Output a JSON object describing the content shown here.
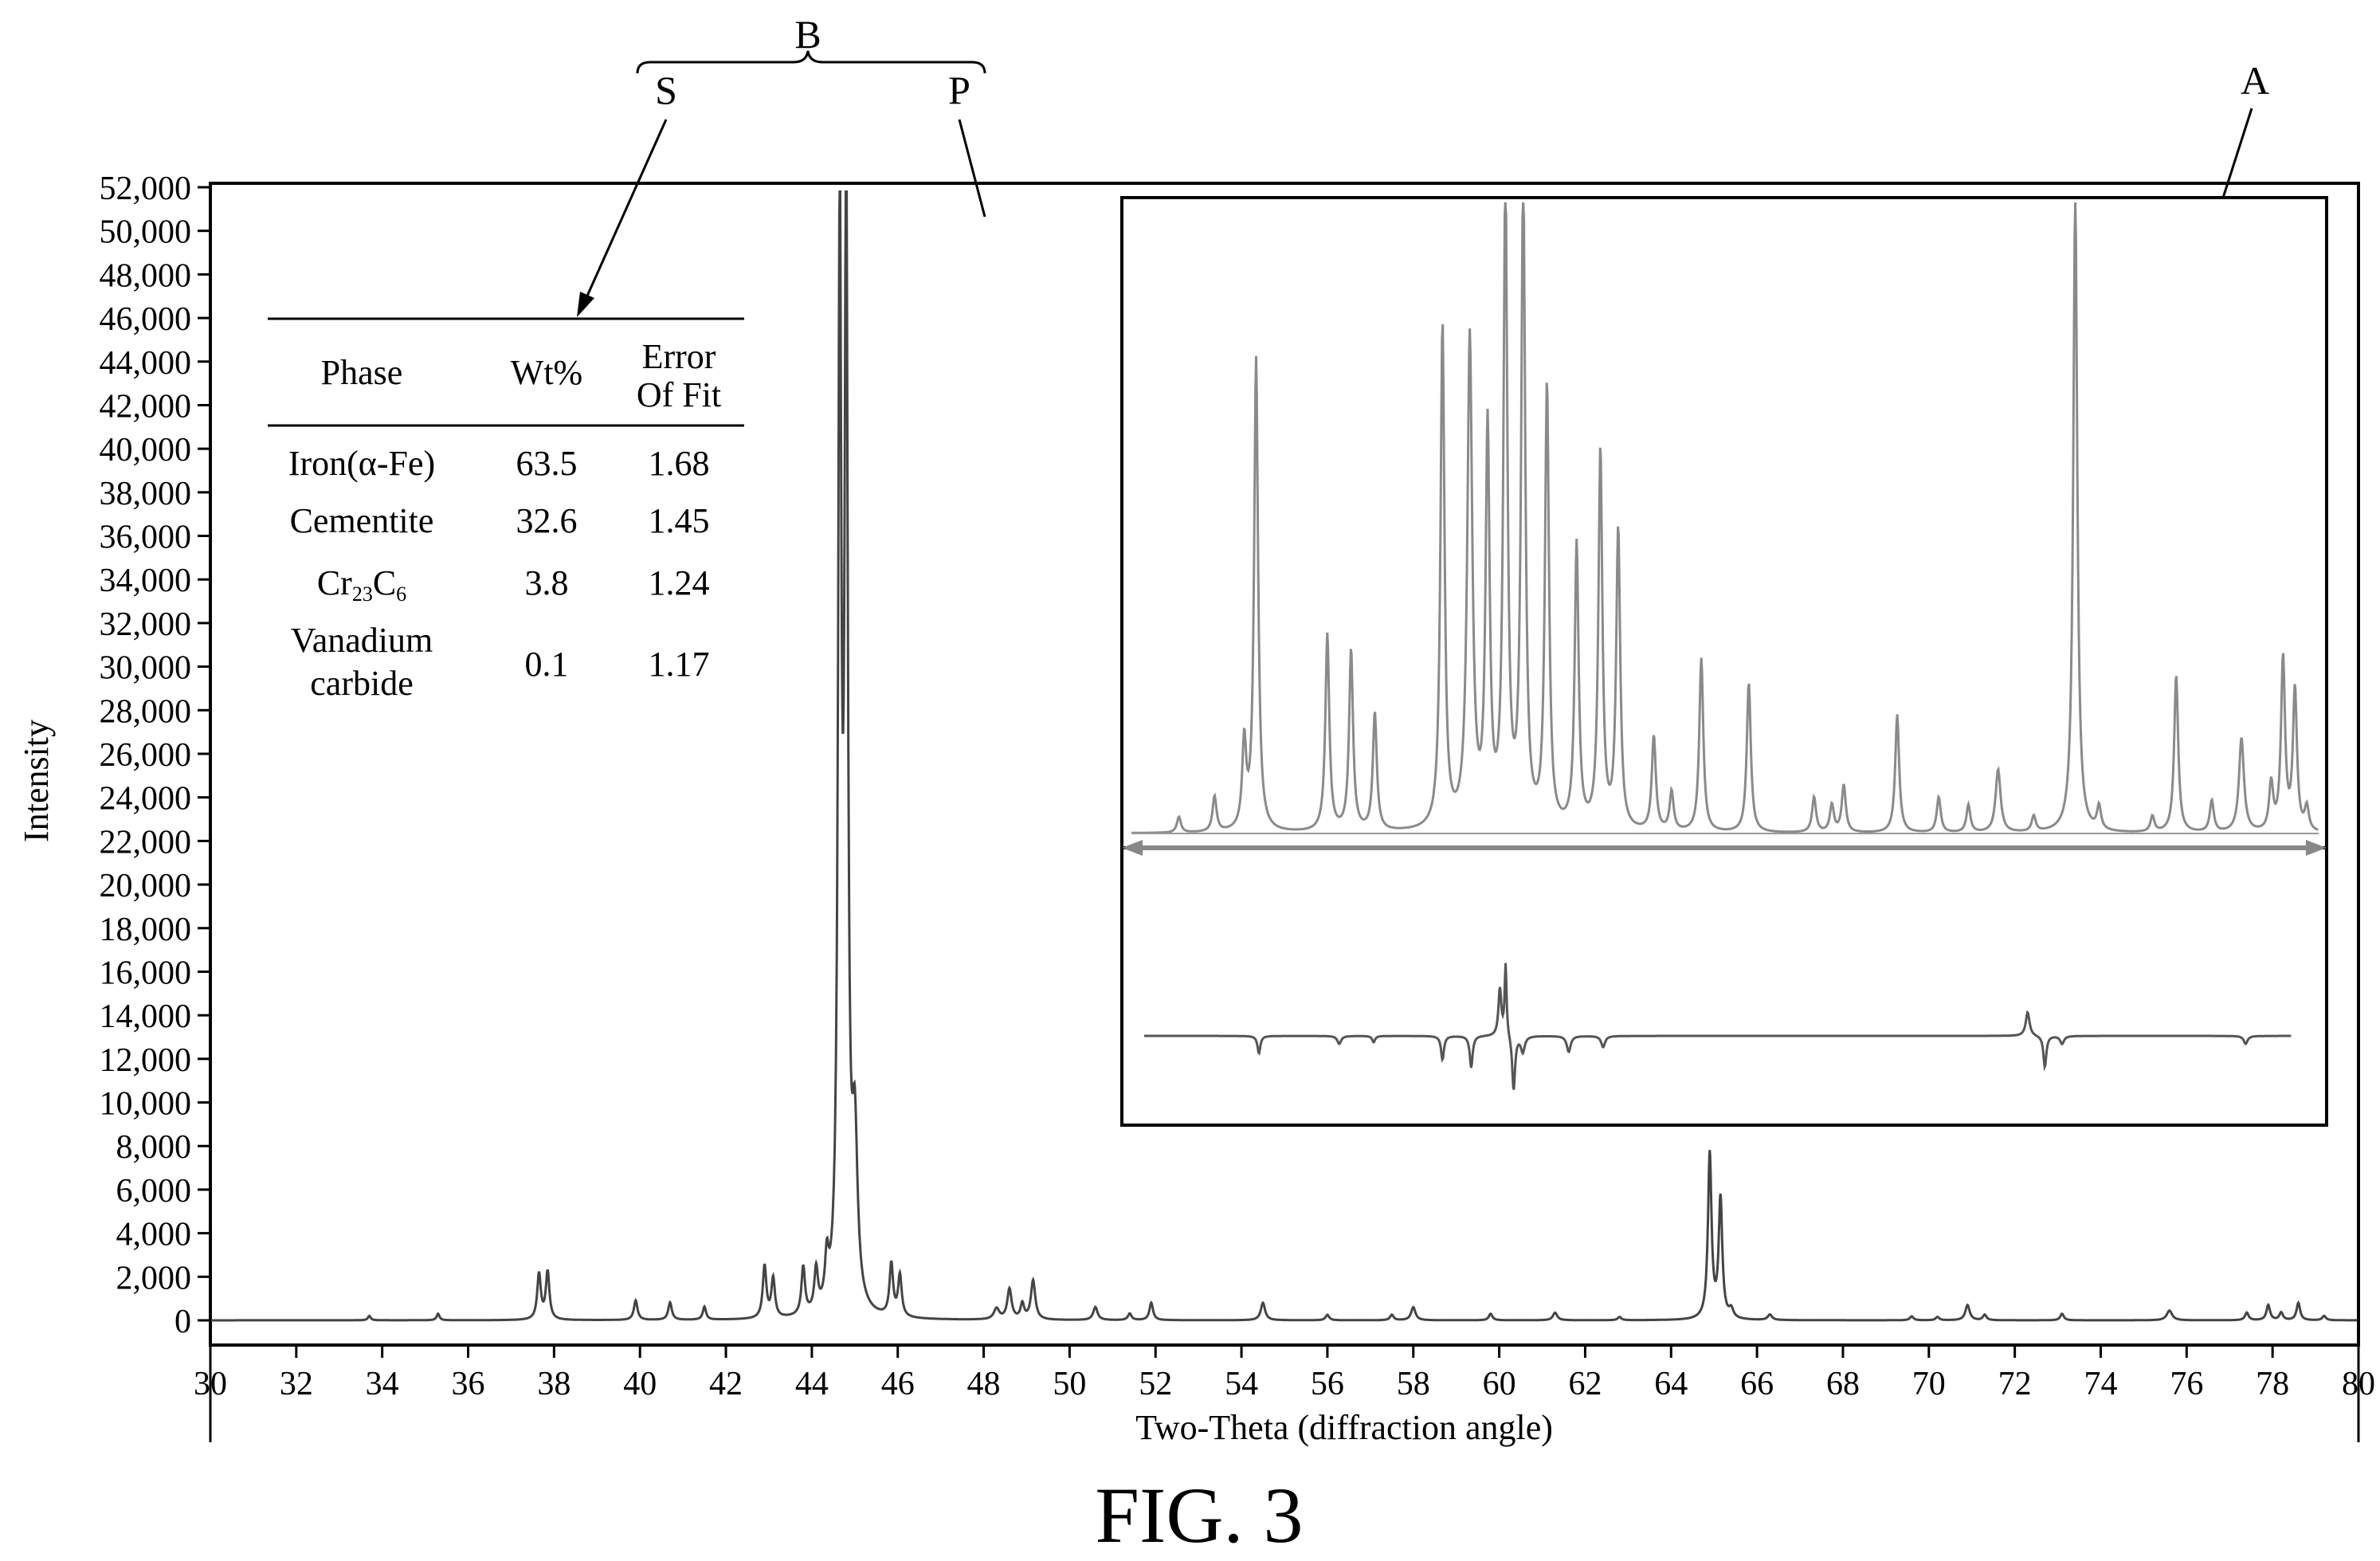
{
  "figure_label": "FIG. 3",
  "callouts": {
    "A": "A",
    "B": "B",
    "S": "S",
    "P": "P"
  },
  "phase_table": {
    "headers": [
      "Phase",
      "Wt%",
      "Error",
      "Of Fit"
    ],
    "rows": [
      {
        "phase": [
          "Iron(α-Fe)"
        ],
        "wt": "63.5",
        "err": "1.68"
      },
      {
        "phase": [
          "Cementite"
        ],
        "wt": "32.6",
        "err": "1.45"
      },
      {
        "phase": [
          "Cr23C6"
        ],
        "wt": "3.8",
        "err": "1.24",
        "formula": {
          "base1": "Cr",
          "sub1": "23",
          "base2": "C",
          "sub2": "6"
        }
      },
      {
        "phase": [
          "Vanadium",
          "carbide"
        ],
        "wt": "0.1",
        "err": "1.17"
      }
    ]
  },
  "chart_data": {
    "type": "line",
    "xlabel": "Two-Theta (diffraction angle)",
    "ylabel": "Intensity",
    "xlim": [
      30,
      80
    ],
    "ylim": [
      -1000,
      52000
    ],
    "x_ticks": [
      30,
      32,
      34,
      36,
      38,
      40,
      42,
      44,
      46,
      48,
      50,
      52,
      54,
      56,
      58,
      60,
      62,
      64,
      66,
      68,
      70,
      72,
      74,
      76,
      78,
      80
    ],
    "y_ticks": [
      0,
      2000,
      4000,
      6000,
      8000,
      10000,
      12000,
      14000,
      16000,
      18000,
      20000,
      22000,
      24000,
      26000,
      28000,
      30000,
      32000,
      34000,
      36000,
      38000,
      40000,
      42000,
      44000,
      46000,
      48000,
      50000,
      52000
    ],
    "y_tick_labels": [
      "0",
      "2,000",
      "4,000",
      "6,000",
      "8,000",
      "10,000",
      "12,000",
      "14,000",
      "16,000",
      "18,000",
      "20,000",
      "22,000",
      "24,000",
      "26,000",
      "28,000",
      "30,000",
      "32,000",
      "34,000",
      "36,000",
      "38,000",
      "40,000",
      "42,000",
      "44,000",
      "46,000",
      "48,000",
      "50,000",
      "52,000"
    ],
    "series": [
      {
        "color": "#444444",
        "peaks": [
          [
            33.7,
            200,
            0.08
          ],
          [
            35.3,
            300,
            0.08
          ],
          [
            37.65,
            2100,
            0.1
          ],
          [
            37.85,
            2200,
            0.1
          ],
          [
            39.9,
            900,
            0.1
          ],
          [
            40.7,
            800,
            0.1
          ],
          [
            41.5,
            600,
            0.09
          ],
          [
            42.9,
            2400,
            0.1
          ],
          [
            43.1,
            1800,
            0.1
          ],
          [
            43.8,
            2200,
            0.1
          ],
          [
            44.1,
            1900,
            0.1
          ],
          [
            44.35,
            2000,
            0.1
          ],
          [
            44.65,
            49000,
            0.09
          ],
          [
            44.8,
            50000,
            0.09
          ],
          [
            45.0,
            7500,
            0.15
          ],
          [
            45.85,
            2400,
            0.1
          ],
          [
            46.05,
            1900,
            0.1
          ],
          [
            48.3,
            500,
            0.15
          ],
          [
            48.6,
            1400,
            0.12
          ],
          [
            48.9,
            700,
            0.1
          ],
          [
            49.15,
            1800,
            0.12
          ],
          [
            50.6,
            600,
            0.12
          ],
          [
            51.4,
            300,
            0.1
          ],
          [
            51.9,
            800,
            0.1
          ],
          [
            54.5,
            800,
            0.12
          ],
          [
            56.0,
            250,
            0.1
          ],
          [
            57.5,
            250,
            0.1
          ],
          [
            58.0,
            600,
            0.12
          ],
          [
            59.8,
            300,
            0.1
          ],
          [
            61.3,
            350,
            0.12
          ],
          [
            62.8,
            150,
            0.1
          ],
          [
            64.9,
            7600,
            0.1
          ],
          [
            65.15,
            5500,
            0.1
          ],
          [
            65.4,
            400,
            0.12
          ],
          [
            66.3,
            250,
            0.12
          ],
          [
            69.6,
            180,
            0.1
          ],
          [
            70.2,
            150,
            0.1
          ],
          [
            70.9,
            700,
            0.12
          ],
          [
            71.3,
            250,
            0.1
          ],
          [
            73.1,
            300,
            0.1
          ],
          [
            75.6,
            450,
            0.15
          ],
          [
            77.4,
            350,
            0.1
          ],
          [
            77.9,
            700,
            0.1
          ],
          [
            78.2,
            350,
            0.1
          ],
          [
            78.6,
            800,
            0.1
          ],
          [
            79.2,
            200,
            0.1
          ]
        ]
      }
    ]
  }
}
